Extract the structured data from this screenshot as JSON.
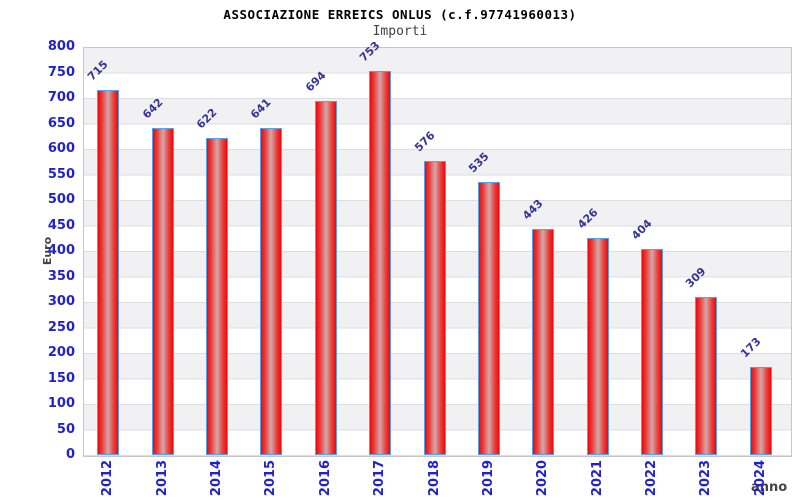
{
  "chart_data": {
    "type": "bar",
    "title": "ASSOCIAZIONE ERREICS ONLUS (c.f.97741960013)",
    "subtitle": "Importi",
    "categories": [
      "2012",
      "2013",
      "2014",
      "2015",
      "2016",
      "2017",
      "2018",
      "2019",
      "2020",
      "2021",
      "2022",
      "2023",
      "2024"
    ],
    "values": [
      715,
      642,
      622,
      641,
      694,
      753,
      576,
      535,
      443,
      426,
      404,
      309,
      173
    ],
    "xlabel": "anno",
    "ylabel": "Euro",
    "ylim": [
      0,
      800
    ],
    "ytick_step": 50,
    "grid": "horizontal-bands-alternating",
    "legend": "none",
    "value_labels": "above-bars-rotated-45",
    "colors": {
      "bar_fill": "#ee0808",
      "bar_fill_center": "#d4a2a2",
      "bar_border": "#58a0e8",
      "tick_label": "#2222cc",
      "value_label": "#333399",
      "axis_title": "#444444",
      "band": "#f1f1f4",
      "gridline": "#dcdce2",
      "plot_border": "#c6c6cc",
      "title_color": "#000000",
      "subtitle_color": "#444444"
    }
  }
}
